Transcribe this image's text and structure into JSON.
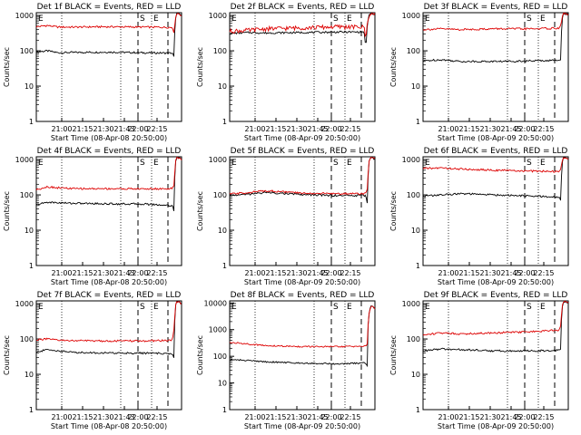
{
  "colors": {
    "events": "#000000",
    "lld": "#dd0000",
    "axis": "#000000"
  },
  "common": {
    "xlabel": "Start Time (08-Apr-09 20:50:00)",
    "ylabel": "Counts/sec",
    "y_ticks": [
      "1",
      "10",
      "100",
      "1000"
    ],
    "x_ticks_a": [
      "21:00",
      "21:15",
      "21:30",
      "21:45",
      "22:00",
      "22:15"
    ],
    "x_ticks_b": [
      "21:00",
      "21:15",
      "21:30",
      "21:43",
      "22:00",
      "22:15"
    ],
    "marker_e": "E",
    "marker_s": "S"
  },
  "chart_data": [
    {
      "type": "line",
      "title": "Det 1f BLACK = Events, RED = LLD",
      "tick_set": "b",
      "xlabel": "Start Time (08-Apr-08 20:50:00)",
      "ylabel": "Counts/sec",
      "x_range_min": [
        0,
        40
      ],
      "y_scale": "log",
      "ylim": [
        1,
        1200
      ],
      "series": [
        {
          "x": [
            0,
            3,
            6,
            10,
            20,
            30,
            37.5,
            38,
            38.5,
            39,
            40
          ],
          "values": [
            92,
            100,
            88,
            90,
            92,
            88,
            86,
            60,
            1100,
            1150,
            1000
          ]
        },
        {
          "x": [
            0,
            3,
            6,
            10,
            20,
            30,
            37.5,
            38,
            38.5,
            39,
            40
          ],
          "values": [
            480,
            520,
            470,
            470,
            480,
            470,
            460,
            300,
            1100,
            1150,
            1000
          ]
        }
      ]
    },
    {
      "type": "line",
      "title": "Det 2f BLACK = Events, RED = LLD",
      "tick_set": "a",
      "xlabel": "Start Time (08-Apr-09 20:50:00)",
      "ylabel": "Counts/sec",
      "x_range_min": [
        0,
        40
      ],
      "y_scale": "log",
      "ylim": [
        1,
        1200
      ],
      "series": [
        {
          "x": [
            0,
            5,
            10,
            20,
            30,
            37,
            37.5,
            38.5,
            39,
            40
          ],
          "values": [
            310,
            330,
            320,
            330,
            340,
            340,
            80,
            1100,
            1150,
            1050
          ]
        },
        {
          "x": [
            0,
            5,
            10,
            20,
            30,
            37,
            37.5,
            38.5,
            39,
            40
          ],
          "values": [
            360,
            380,
            420,
            450,
            480,
            470,
            200,
            1100,
            1150,
            1050
          ]
        }
      ]
    },
    {
      "type": "line",
      "title": "Det 3f BLACK = Events, RED = LLD",
      "tick_set": "a",
      "xlabel": "Start Time (08-Apr-09 20:50:00)",
      "ylabel": "Counts/sec",
      "x_range_min": [
        0,
        40
      ],
      "y_scale": "log",
      "ylim": [
        1,
        1200
      ],
      "series": [
        {
          "x": [
            0,
            5,
            10,
            20,
            30,
            37.5,
            38,
            38.5,
            39,
            40
          ],
          "values": [
            52,
            56,
            50,
            50,
            52,
            54,
            60,
            1100,
            1150,
            1050
          ]
        },
        {
          "x": [
            0,
            5,
            10,
            20,
            30,
            37.5,
            38,
            38.5,
            39,
            40
          ],
          "values": [
            400,
            420,
            400,
            420,
            420,
            440,
            520,
            1100,
            1150,
            1050
          ]
        }
      ]
    },
    {
      "type": "line",
      "title": "Det 4f BLACK = Events, RED = LLD",
      "tick_set": "b",
      "xlabel": "Start Time (08-Apr-08 20:50:00)",
      "ylabel": "Counts/sec",
      "x_range_min": [
        0,
        40
      ],
      "y_scale": "log",
      "ylim": [
        1,
        1200
      ],
      "series": [
        {
          "x": [
            0,
            3,
            6,
            10,
            20,
            30,
            37.5,
            38,
            38.5,
            39,
            40
          ],
          "values": [
            52,
            62,
            60,
            58,
            56,
            55,
            50,
            30,
            1100,
            1150,
            1000
          ]
        },
        {
          "x": [
            0,
            3,
            6,
            10,
            20,
            30,
            37.5,
            38,
            38.5,
            39,
            40
          ],
          "values": [
            140,
            170,
            160,
            150,
            150,
            148,
            150,
            200,
            1100,
            1150,
            1000
          ]
        }
      ]
    },
    {
      "type": "line",
      "title": "Det 5f BLACK = Events, RED = LLD",
      "tick_set": "a",
      "xlabel": "Start Time (08-Apr-09 20:50:00)",
      "ylabel": "Counts/sec",
      "x_range_min": [
        0,
        40
      ],
      "y_scale": "log",
      "ylim": [
        1,
        1200
      ],
      "series": [
        {
          "x": [
            0,
            5,
            10,
            20,
            30,
            37.5,
            38,
            38.5,
            39,
            40
          ],
          "values": [
            96,
            104,
            118,
            102,
            96,
            96,
            50,
            1100,
            1150,
            1050
          ]
        },
        {
          "x": [
            0,
            5,
            10,
            20,
            30,
            37.5,
            38,
            38.5,
            39,
            40
          ],
          "values": [
            106,
            116,
            132,
            112,
            108,
            110,
            150,
            1100,
            1150,
            1050
          ]
        }
      ]
    },
    {
      "type": "line",
      "title": "Det 6f BLACK = Events, RED = LLD",
      "tick_set": "a",
      "xlabel": "Start Time (08-Apr-09 20:50:00)",
      "ylabel": "Counts/sec",
      "x_range_min": [
        0,
        40
      ],
      "y_scale": "log",
      "ylim": [
        1,
        1200
      ],
      "series": [
        {
          "x": [
            0,
            5,
            10,
            20,
            30,
            37.5,
            38,
            38.5,
            39,
            40
          ],
          "values": [
            92,
            100,
            108,
            100,
            92,
            86,
            60,
            1100,
            1150,
            1050
          ]
        },
        {
          "x": [
            0,
            5,
            10,
            20,
            30,
            37.5,
            38,
            38.5,
            39,
            40
          ],
          "values": [
            560,
            580,
            540,
            500,
            470,
            460,
            520,
            1100,
            1150,
            1050
          ]
        }
      ]
    },
    {
      "type": "line",
      "title": "Det 7f BLACK = Events, RED = LLD",
      "tick_set": "b",
      "xlabel": "Start Time (08-Apr-08 20:50:00)",
      "ylabel": "Counts/sec",
      "x_range_min": [
        0,
        40
      ],
      "y_scale": "log",
      "ylim": [
        1,
        1200
      ],
      "series": [
        {
          "x": [
            0,
            3,
            6,
            10,
            20,
            30,
            37.5,
            38,
            38.5,
            39,
            40
          ],
          "values": [
            42,
            50,
            46,
            42,
            40,
            40,
            38,
            25,
            1100,
            1150,
            1000
          ]
        },
        {
          "x": [
            0,
            3,
            6,
            10,
            20,
            30,
            37.5,
            38,
            38.5,
            39,
            40
          ],
          "values": [
            95,
            100,
            92,
            90,
            88,
            88,
            92,
            200,
            1100,
            1150,
            1000
          ]
        }
      ]
    },
    {
      "type": "line",
      "title": "Det 8f BLACK = Events, RED = LLD",
      "tick_set": "a",
      "xlabel": "Start Time (08-Apr-09 20:50:00)",
      "ylabel": "Counts/sec",
      "x_range_min": [
        0,
        40
      ],
      "y_scale": "log",
      "ylim": [
        1,
        12000
      ],
      "series": [
        {
          "x": [
            0,
            5,
            10,
            20,
            30,
            37.5,
            38,
            38.5,
            39,
            40
          ],
          "values": [
            75,
            70,
            62,
            56,
            52,
            56,
            40,
            5000,
            8000,
            6000
          ]
        },
        {
          "x": [
            0,
            5,
            10,
            20,
            30,
            37.5,
            38,
            38.5,
            39,
            40
          ],
          "values": [
            330,
            290,
            250,
            230,
            230,
            240,
            300,
            5000,
            8000,
            6000
          ]
        }
      ]
    },
    {
      "type": "line",
      "title": "Det 9f BLACK = Events, RED = LLD",
      "tick_set": "a",
      "xlabel": "Start Time (08-Apr-09 20:50:00)",
      "ylabel": "Counts/sec",
      "x_range_min": [
        0,
        40
      ],
      "y_scale": "log",
      "ylim": [
        1,
        1200
      ],
      "series": [
        {
          "x": [
            0,
            5,
            10,
            20,
            30,
            37.5,
            38,
            38.5,
            39,
            40
          ],
          "values": [
            46,
            52,
            50,
            46,
            46,
            48,
            55,
            1100,
            1150,
            1050
          ]
        },
        {
          "x": [
            0,
            5,
            10,
            20,
            30,
            37.5,
            38,
            38.5,
            39,
            40
          ],
          "values": [
            130,
            150,
            140,
            150,
            160,
            180,
            250,
            1100,
            1150,
            1050
          ]
        }
      ]
    }
  ]
}
